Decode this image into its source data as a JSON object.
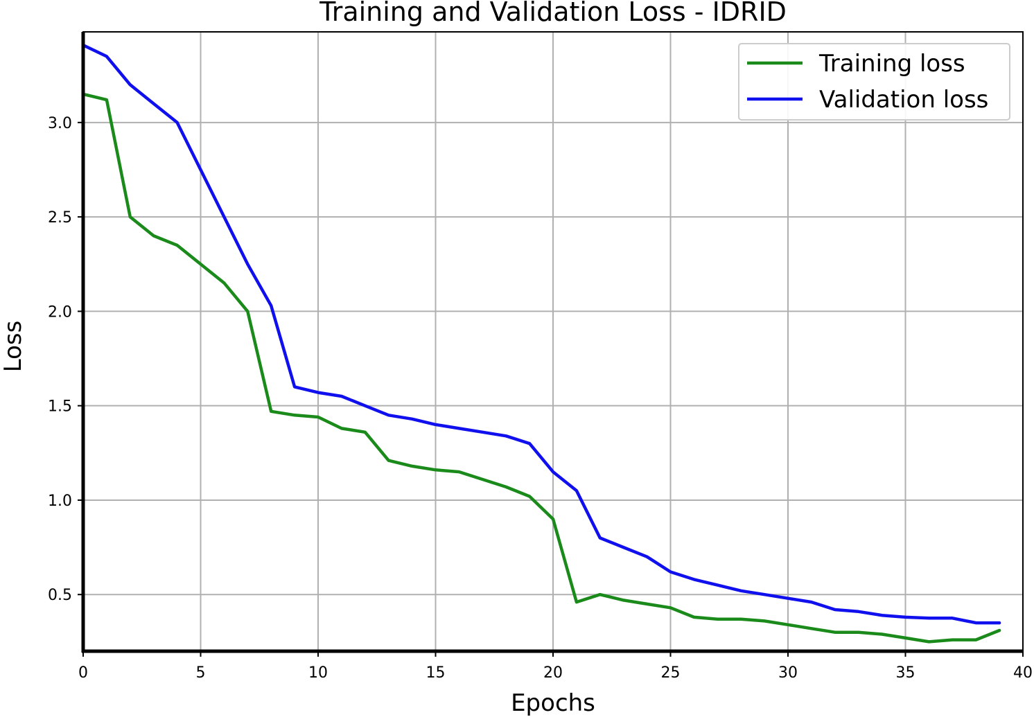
{
  "chart_data": {
    "type": "line",
    "title": "Training and Validation Loss - IDRID",
    "xlabel": "Epochs",
    "ylabel": "Loss",
    "xlim": [
      0,
      40
    ],
    "ylim": [
      0.2,
      3.48
    ],
    "xticks": [
      0,
      5,
      10,
      15,
      20,
      25,
      30,
      35,
      40
    ],
    "yticks": [
      0.5,
      1.0,
      1.5,
      2.0,
      2.5,
      3.0
    ],
    "grid": true,
    "legend_position": "top-right",
    "x": [
      0,
      1,
      2,
      3,
      4,
      5,
      6,
      7,
      8,
      9,
      10,
      11,
      12,
      13,
      14,
      15,
      16,
      17,
      18,
      19,
      20,
      21,
      22,
      23,
      24,
      25,
      26,
      27,
      28,
      29,
      30,
      31,
      32,
      33,
      34,
      35,
      36,
      37,
      38,
      39
    ],
    "series": [
      {
        "name": "Training loss",
        "color": "#1a8a1a",
        "values": [
          3.15,
          3.12,
          2.5,
          2.4,
          2.35,
          2.25,
          2.15,
          2.0,
          1.47,
          1.45,
          1.44,
          1.38,
          1.36,
          1.21,
          1.18,
          1.16,
          1.15,
          1.11,
          1.07,
          1.02,
          0.9,
          0.46,
          0.5,
          0.47,
          0.45,
          0.43,
          0.38,
          0.37,
          0.37,
          0.36,
          0.34,
          0.32,
          0.3,
          0.3,
          0.29,
          0.27,
          0.25,
          0.26,
          0.26,
          0.31
        ]
      },
      {
        "name": "Validation loss",
        "color": "#1010ee",
        "values": [
          3.41,
          3.35,
          3.2,
          3.1,
          3.0,
          2.75,
          2.5,
          2.25,
          2.03,
          1.6,
          1.57,
          1.55,
          1.5,
          1.45,
          1.43,
          1.4,
          1.38,
          1.36,
          1.34,
          1.3,
          1.15,
          1.05,
          0.8,
          0.75,
          0.7,
          0.62,
          0.58,
          0.55,
          0.52,
          0.5,
          0.48,
          0.46,
          0.42,
          0.41,
          0.39,
          0.38,
          0.375,
          0.375,
          0.35,
          0.35
        ]
      }
    ]
  }
}
